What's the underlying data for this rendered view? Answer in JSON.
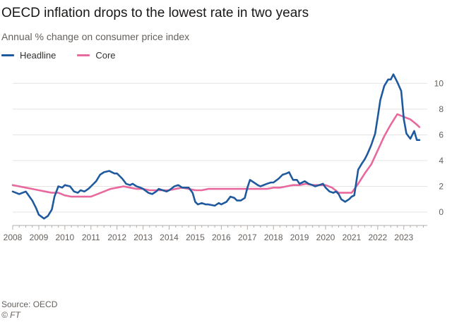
{
  "title": "OECD inflation drops to the lowest rate in two years",
  "subtitle": "Annual % change on consumer price index",
  "source": "Source: OECD",
  "credit": "© FT",
  "colors": {
    "headline": "#1f5a9e",
    "core": "#e8699d",
    "grid": "#e6e3e1",
    "text": "#66605c"
  },
  "chart_data": {
    "type": "line",
    "title": "OECD inflation drops to the lowest rate in two years",
    "subtitle": "Annual % change on consumer price index",
    "xlabel": "",
    "ylabel": "",
    "xlim": [
      2008.0,
      2023.9
    ],
    "ylim": [
      -0.6,
      11
    ],
    "yticks": [
      0,
      2,
      4,
      6,
      8,
      10
    ],
    "xticks": [
      "2008",
      "2009",
      "2010",
      "2011",
      "2012",
      "2013",
      "2014",
      "2015",
      "2016",
      "2017",
      "2018",
      "2019",
      "2020",
      "2021",
      "2022",
      "2023"
    ],
    "grid": true,
    "legend_position": "top-left",
    "series": [
      {
        "name": "Headline",
        "color": "#1f5a9e",
        "x": [
          2008.0,
          2008.25,
          2008.5,
          2008.75,
          2008.9,
          2009.0,
          2009.2,
          2009.35,
          2009.5,
          2009.6,
          2009.75,
          2009.9,
          2010.0,
          2010.2,
          2010.35,
          2010.5,
          2010.6,
          2010.75,
          2010.9,
          2011.0,
          2011.2,
          2011.35,
          2011.5,
          2011.7,
          2011.9,
          2012.0,
          2012.2,
          2012.35,
          2012.5,
          2012.6,
          2012.75,
          2012.9,
          2013.0,
          2013.2,
          2013.35,
          2013.5,
          2013.6,
          2013.75,
          2013.9,
          2014.0,
          2014.2,
          2014.35,
          2014.5,
          2014.75,
          2014.9,
          2015.0,
          2015.1,
          2015.25,
          2015.4,
          2015.5,
          2015.75,
          2015.9,
          2016.0,
          2016.2,
          2016.35,
          2016.5,
          2016.6,
          2016.75,
          2016.9,
          2017.0,
          2017.1,
          2017.25,
          2017.4,
          2017.5,
          2017.75,
          2017.9,
          2018.0,
          2018.2,
          2018.35,
          2018.5,
          2018.6,
          2018.75,
          2018.9,
          2019.0,
          2019.2,
          2019.35,
          2019.5,
          2019.6,
          2019.75,
          2019.9,
          2020.0,
          2020.15,
          2020.3,
          2020.4,
          2020.5,
          2020.6,
          2020.75,
          2020.9,
          2021.0,
          2021.1,
          2021.25,
          2021.4,
          2021.5,
          2021.6,
          2021.75,
          2021.9,
          2022.0,
          2022.1,
          2022.25,
          2022.4,
          2022.5,
          2022.6,
          2022.75,
          2022.9,
          2023.0,
          2023.1,
          2023.25,
          2023.4,
          2023.5,
          2023.6
        ],
        "values": [
          1.6,
          1.4,
          1.6,
          0.9,
          0.3,
          -0.2,
          -0.5,
          -0.3,
          0.2,
          1.2,
          2.0,
          1.9,
          2.1,
          2.0,
          1.6,
          1.5,
          1.7,
          1.6,
          1.8,
          2.0,
          2.4,
          2.9,
          3.1,
          3.2,
          3.0,
          3.0,
          2.6,
          2.2,
          2.1,
          2.2,
          2.0,
          1.9,
          1.8,
          1.5,
          1.4,
          1.6,
          1.8,
          1.7,
          1.6,
          1.7,
          2.0,
          2.1,
          1.9,
          1.9,
          1.5,
          0.8,
          0.6,
          0.7,
          0.6,
          0.6,
          0.5,
          0.7,
          0.6,
          0.8,
          1.2,
          1.1,
          0.9,
          0.9,
          1.1,
          1.9,
          2.5,
          2.3,
          2.1,
          2.0,
          2.2,
          2.3,
          2.3,
          2.6,
          2.9,
          3.0,
          3.1,
          2.5,
          2.5,
          2.2,
          2.4,
          2.2,
          2.1,
          2.0,
          2.1,
          2.2,
          1.9,
          1.6,
          1.5,
          1.6,
          1.4,
          1.0,
          0.8,
          1.0,
          1.2,
          1.3,
          3.3,
          3.8,
          4.1,
          4.5,
          5.2,
          6.1,
          7.4,
          8.7,
          9.8,
          10.3,
          10.3,
          10.7,
          10.1,
          9.4,
          7.2,
          6.1,
          5.7,
          6.3,
          5.6,
          5.6
        ]
      },
      {
        "name": "Core",
        "color": "#e8699d",
        "x": [
          2008.0,
          2008.25,
          2008.5,
          2008.75,
          2009.0,
          2009.25,
          2009.5,
          2009.75,
          2010.0,
          2010.25,
          2010.5,
          2010.75,
          2011.0,
          2011.25,
          2011.5,
          2011.75,
          2012.0,
          2012.25,
          2012.5,
          2012.75,
          2013.0,
          2013.25,
          2013.5,
          2013.75,
          2014.0,
          2014.25,
          2014.5,
          2014.75,
          2015.0,
          2015.25,
          2015.5,
          2015.75,
          2016.0,
          2016.25,
          2016.5,
          2016.75,
          2017.0,
          2017.25,
          2017.5,
          2017.75,
          2018.0,
          2018.25,
          2018.5,
          2018.75,
          2019.0,
          2019.25,
          2019.5,
          2019.75,
          2020.0,
          2020.25,
          2020.5,
          2020.75,
          2021.0,
          2021.25,
          2021.5,
          2021.75,
          2022.0,
          2022.25,
          2022.5,
          2022.75,
          2023.0,
          2023.25,
          2023.5,
          2023.6
        ],
        "values": [
          2.1,
          2.0,
          1.9,
          1.8,
          1.7,
          1.6,
          1.5,
          1.5,
          1.3,
          1.2,
          1.2,
          1.2,
          1.2,
          1.4,
          1.6,
          1.8,
          1.9,
          2.0,
          1.9,
          1.8,
          1.8,
          1.7,
          1.7,
          1.7,
          1.7,
          1.8,
          1.9,
          1.8,
          1.7,
          1.7,
          1.8,
          1.8,
          1.8,
          1.8,
          1.8,
          1.8,
          1.8,
          1.8,
          1.8,
          1.8,
          1.9,
          1.9,
          2.0,
          2.1,
          2.1,
          2.2,
          2.1,
          2.1,
          2.1,
          1.9,
          1.5,
          1.5,
          1.5,
          2.2,
          3.0,
          3.7,
          4.8,
          5.9,
          6.8,
          7.6,
          7.4,
          7.2,
          6.8,
          6.6
        ]
      }
    ]
  }
}
